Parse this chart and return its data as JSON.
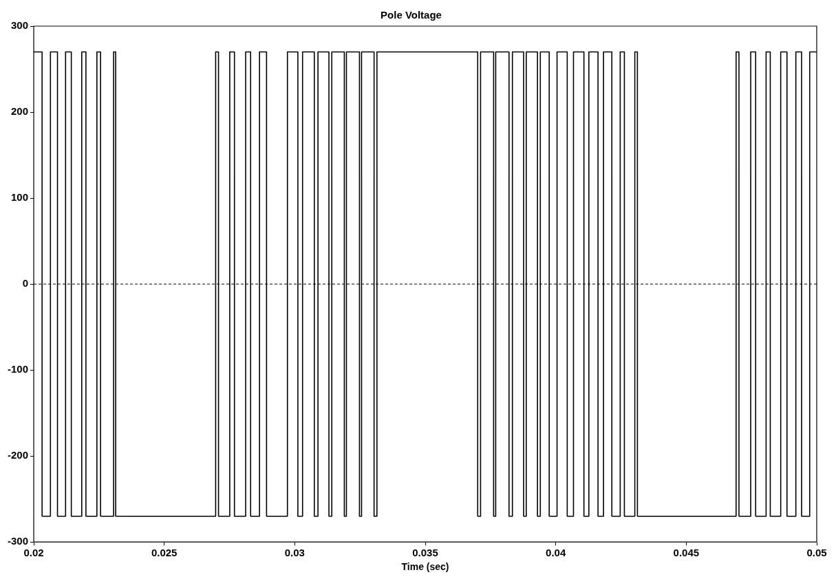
{
  "chart_data": {
    "type": "step",
    "title": "Pole Voltage",
    "xlabel": "Time (sec)",
    "x": [
      0.02,
      0.02032,
      0.02064,
      0.02091,
      0.02122,
      0.02144,
      0.02184,
      0.022,
      0.02242,
      0.02256,
      0.02306,
      0.02314,
      0.02697,
      0.02708,
      0.02751,
      0.02769,
      0.02812,
      0.02831,
      0.02865,
      0.02892,
      0.02972,
      0.03012,
      0.0303,
      0.03075,
      0.03089,
      0.03131,
      0.03142,
      0.0319,
      0.03198,
      0.03248,
      0.03256,
      0.03304,
      0.03315,
      0.03701,
      0.03712,
      0.03762,
      0.0377,
      0.03821,
      0.03834,
      0.03877,
      0.03887,
      0.0393,
      0.03941,
      0.03975,
      0.04005,
      0.04044,
      0.04068,
      0.04108,
      0.04127,
      0.04162,
      0.04183,
      0.04215,
      0.04247,
      0.04263,
      0.04303,
      0.04313,
      0.04691,
      0.04702,
      0.04747,
      0.04766,
      0.04806,
      0.04822,
      0.04862,
      0.04886,
      0.0492,
      0.04942,
      0.04973,
      0.05
    ],
    "values": [
      270,
      -270,
      270,
      -270,
      270,
      -270,
      270,
      -270,
      270,
      -270,
      270,
      -270,
      270,
      -270,
      270,
      -270,
      270,
      -270,
      270,
      -270,
      270,
      -270,
      270,
      -270,
      270,
      -270,
      270,
      -270,
      270,
      -270,
      270,
      -270,
      270,
      -270,
      270,
      -270,
      270,
      -270,
      270,
      -270,
      270,
      -270,
      270,
      -270,
      270,
      -270,
      270,
      -270,
      270,
      -270,
      270,
      -270,
      270,
      -270,
      270,
      -270,
      270,
      -270,
      270,
      -270,
      270,
      -270,
      270,
      -270,
      270,
      -270,
      270,
      270
    ],
    "color": "#000000",
    "line_style": "solid",
    "marker": "none",
    "grid": false,
    "legend": false,
    "xlim": [
      0.02,
      0.05
    ],
    "xticks": [
      0.02,
      0.025,
      0.03,
      0.035,
      0.04,
      0.045,
      0.05
    ],
    "ylim": [
      -300,
      300
    ],
    "yticks": [
      -300,
      -200,
      -100,
      0,
      100,
      200,
      300
    ],
    "ref_lines": [
      {
        "axis": "y",
        "value": 0,
        "color": "#000000",
        "line_style": "dashed"
      }
    ]
  }
}
